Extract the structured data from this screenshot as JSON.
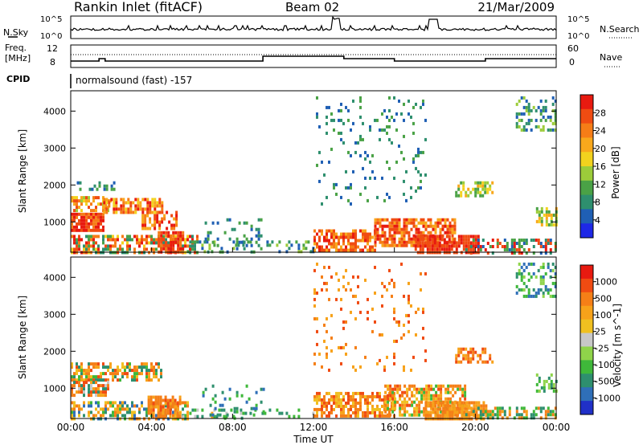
{
  "header": {
    "station": "Rankin Inlet (fitACF)",
    "beam": "Beam 02",
    "date": "21/Mar/2009"
  },
  "noise_panel": {
    "left_label": "N.Sky",
    "right_label": "N.Search",
    "tick_labels": [
      "10^5",
      "10^0"
    ]
  },
  "freq_panel": {
    "left_label_line1": "Freq.",
    "left_label_line2": "[MHz]",
    "right_label": "Nave",
    "left_ticks": [
      "12",
      "8"
    ],
    "right_ticks": [
      "60",
      "0"
    ]
  },
  "cpid_panel": {
    "label": "CPID",
    "mode_text": "normalsound (fast) -157"
  },
  "chart_data": [
    {
      "type": "heatmap",
      "title": "",
      "quantity": "Power",
      "colorbar_label": "Power [dB]",
      "colorbar_ticks": [
        4,
        8,
        12,
        16,
        20,
        24,
        28
      ],
      "colorbar_colors": [
        "#1e28e6",
        "#1f5fb4",
        "#2e8f6e",
        "#4aa246",
        "#9ccc3a",
        "#f2d21e",
        "#f8a81c",
        "#f67d17",
        "#f04c12",
        "#e81a10"
      ],
      "ylabel": "Slant Range [km]",
      "xlabel": "",
      "ylim": [
        180,
        4550
      ],
      "yticks": [
        1000,
        2000,
        3000,
        4000
      ],
      "xlim_hours": [
        0,
        24
      ],
      "xticks": [
        "00:00",
        "04:00",
        "08:00",
        "12:00",
        "16:00",
        "20:00",
        "00:00"
      ]
    },
    {
      "type": "heatmap",
      "title": "",
      "quantity": "Velocity",
      "colorbar_label": "Velocity [m s^-1]",
      "colorbar_ticks": [
        "1000",
        "500",
        "100",
        "25",
        "-25",
        "-100",
        "-500",
        "-1000"
      ],
      "colorbar_colors": [
        "#2030c8",
        "#2f6fb8",
        "#2e8f6e",
        "#3fb83a",
        "#8fd44a",
        "#c8c8c8",
        "#f0c020",
        "#f7a21a",
        "#f57f17",
        "#f04b12",
        "#e81a10"
      ],
      "ylabel": "Slant Range [km]",
      "xlabel": "Time UT",
      "ylim": [
        180,
        4550
      ],
      "yticks": [
        1000,
        2000,
        3000,
        4000
      ],
      "xlim_hours": [
        0,
        24
      ],
      "xticks": [
        "00:00",
        "04:00",
        "08:00",
        "12:00",
        "16:00",
        "20:00",
        "00:00"
      ]
    }
  ],
  "data_regions": {
    "power": [
      {
        "t0": 0.0,
        "t1": 1.6,
        "r0": 800,
        "r1": 1250,
        "palette": [
          9,
          9,
          8,
          8,
          7
        ],
        "density": 0.85
      },
      {
        "t0": 0.0,
        "t1": 2.0,
        "r0": 1300,
        "r1": 1700,
        "palette": [
          6,
          5,
          4,
          7,
          8
        ],
        "density": 0.6
      },
      {
        "t0": 1.6,
        "t1": 4.5,
        "r0": 1250,
        "r1": 1650,
        "palette": [
          7,
          8,
          6,
          5,
          9
        ],
        "density": 0.7
      },
      {
        "t0": 3.5,
        "t1": 5.2,
        "r0": 800,
        "r1": 1300,
        "palette": [
          8,
          9,
          7,
          6
        ],
        "density": 0.6
      },
      {
        "t0": 0.0,
        "t1": 6.3,
        "r0": 200,
        "r1": 650,
        "palette": [
          2,
          3,
          5,
          7,
          8,
          9
        ],
        "density": 0.6
      },
      {
        "t0": 4.3,
        "t1": 5.6,
        "r0": 200,
        "r1": 750,
        "palette": [
          9,
          8,
          8,
          7
        ],
        "density": 0.85
      },
      {
        "t0": 5.5,
        "t1": 12.0,
        "r0": 200,
        "r1": 500,
        "palette": [
          1,
          2,
          3,
          4
        ],
        "density": 0.25
      },
      {
        "t0": 12.0,
        "t1": 15.0,
        "r0": 250,
        "r1": 800,
        "palette": [
          8,
          7,
          8,
          9,
          6
        ],
        "density": 0.7
      },
      {
        "t0": 15.0,
        "t1": 19.0,
        "r0": 350,
        "r1": 1100,
        "palette": [
          9,
          8,
          7,
          8,
          6
        ],
        "density": 0.75
      },
      {
        "t0": 17.0,
        "t1": 20.2,
        "r0": 200,
        "r1": 650,
        "palette": [
          9,
          9,
          8,
          8
        ],
        "density": 0.85
      },
      {
        "t0": 19.5,
        "t1": 24.0,
        "r0": 200,
        "r1": 550,
        "palette": [
          1,
          2,
          3,
          8,
          9
        ],
        "density": 0.5
      },
      {
        "t0": 19.0,
        "t1": 20.8,
        "r0": 1700,
        "r1": 2100,
        "palette": [
          4,
          5,
          6,
          3
        ],
        "density": 0.5
      },
      {
        "t0": 22.0,
        "t1": 24.0,
        "r0": 3500,
        "r1": 4400,
        "palette": [
          1,
          2,
          3,
          4
        ],
        "density": 0.35
      },
      {
        "t0": 23.0,
        "t1": 24.0,
        "r0": 900,
        "r1": 1400,
        "palette": [
          3,
          4,
          5,
          6
        ],
        "density": 0.6
      },
      {
        "t0": 0.3,
        "t1": 2.2,
        "r0": 1900,
        "r1": 2100,
        "palette": [
          1,
          2,
          3
        ],
        "density": 0.35
      },
      {
        "t0": 12.0,
        "t1": 17.5,
        "r0": 1500,
        "r1": 4400,
        "palette": [
          1,
          2,
          3
        ],
        "density": 0.08
      },
      {
        "t0": 6.5,
        "t1": 9.5,
        "r0": 200,
        "r1": 1100,
        "palette": [
          1,
          2,
          3
        ],
        "density": 0.15
      }
    ],
    "velocity": [
      {
        "t0": 0.0,
        "t1": 4.5,
        "r0": 1200,
        "r1": 1700,
        "palette": [
          7,
          8,
          9,
          6,
          3,
          2
        ],
        "density": 0.65
      },
      {
        "t0": 0.0,
        "t1": 1.8,
        "r0": 800,
        "r1": 1200,
        "palette": [
          8,
          9,
          7,
          5,
          2
        ],
        "density": 0.7
      },
      {
        "t0": 0.0,
        "t1": 5.8,
        "r0": 200,
        "r1": 650,
        "palette": [
          7,
          8,
          2,
          3,
          1,
          6
        ],
        "density": 0.55
      },
      {
        "t0": 3.8,
        "t1": 5.4,
        "r0": 200,
        "r1": 800,
        "palette": [
          8,
          8,
          7,
          9
        ],
        "density": 0.8
      },
      {
        "t0": 5.5,
        "t1": 12.0,
        "r0": 200,
        "r1": 450,
        "palette": [
          2,
          3,
          5,
          7
        ],
        "density": 0.25
      },
      {
        "t0": 12.0,
        "t1": 16.0,
        "r0": 250,
        "r1": 900,
        "palette": [
          8,
          7,
          9,
          8,
          6
        ],
        "density": 0.65
      },
      {
        "t0": 15.5,
        "t1": 19.5,
        "r0": 300,
        "r1": 1100,
        "palette": [
          8,
          7,
          8,
          9,
          6,
          3
        ],
        "density": 0.7
      },
      {
        "t0": 17.5,
        "t1": 20.5,
        "r0": 200,
        "r1": 650,
        "palette": [
          7,
          8,
          8,
          7
        ],
        "density": 0.85
      },
      {
        "t0": 19.5,
        "t1": 24.0,
        "r0": 200,
        "r1": 500,
        "palette": [
          2,
          3,
          7,
          8
        ],
        "density": 0.5
      },
      {
        "t0": 19.0,
        "t1": 20.8,
        "r0": 1700,
        "r1": 2100,
        "palette": [
          8,
          9,
          7
        ],
        "density": 0.55
      },
      {
        "t0": 22.0,
        "t1": 24.0,
        "r0": 3500,
        "r1": 4400,
        "palette": [
          2,
          3,
          1,
          4
        ],
        "density": 0.35
      },
      {
        "t0": 23.0,
        "t1": 24.0,
        "r0": 900,
        "r1": 1400,
        "palette": [
          3,
          2,
          4
        ],
        "density": 0.55
      },
      {
        "t0": 12.0,
        "t1": 17.5,
        "r0": 1500,
        "r1": 4400,
        "palette": [
          8,
          9,
          7
        ],
        "density": 0.08
      },
      {
        "t0": 6.5,
        "t1": 9.5,
        "r0": 200,
        "r1": 1100,
        "palette": [
          1,
          2,
          3
        ],
        "density": 0.15
      }
    ]
  },
  "colors": {
    "axis": "#000000",
    "background": "#ffffff"
  }
}
